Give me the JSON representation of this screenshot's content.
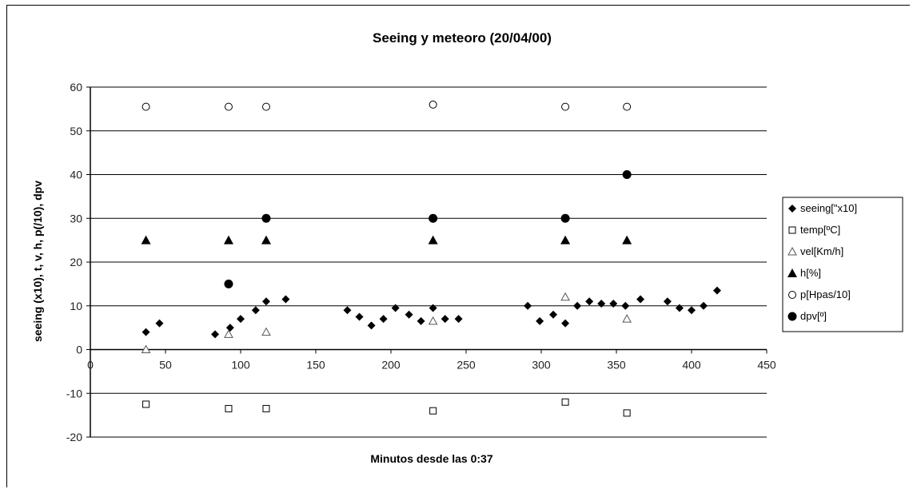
{
  "chart_data": {
    "type": "scatter",
    "title": "Seeing y meteoro (20/04/00)",
    "xlabel": "Minutos desde las 0:37",
    "ylabel": "seeing (x10), t, v, h, p(/10), dpv",
    "xlim": [
      0,
      450
    ],
    "ylim": [
      -20,
      60
    ],
    "x_ticks": [
      "0",
      "50",
      "100",
      "150",
      "200",
      "250",
      "300",
      "350",
      "400",
      "450"
    ],
    "y_ticks": [
      "60",
      "50",
      "40",
      "30",
      "20",
      "10",
      "0",
      "-10",
      "-20"
    ],
    "grid": "horizontal",
    "legend_position": "right",
    "series": [
      {
        "name": "seeing[\"x10]",
        "marker": "diamond",
        "color": "#000000",
        "x": [
          37,
          46,
          83,
          93,
          100,
          110,
          117,
          130,
          171,
          179,
          187,
          195,
          203,
          212,
          220,
          228,
          236,
          245,
          291,
          299,
          308,
          316,
          324,
          332,
          340,
          348,
          356,
          366,
          384,
          392,
          400,
          408,
          417
        ],
        "y": [
          4,
          6,
          3.5,
          5,
          7,
          9,
          11,
          11.5,
          9,
          7.5,
          5.5,
          7,
          9.5,
          8,
          6.5,
          9.5,
          7,
          7,
          10,
          6.5,
          8,
          6,
          10,
          11,
          10.5,
          10.5,
          10,
          11.5,
          11,
          9.5,
          9,
          10,
          13.5
        ]
      },
      {
        "name": "temp[ºC]",
        "marker": "square-open",
        "color": "#000000",
        "x": [
          37,
          92,
          117,
          228,
          316,
          357
        ],
        "y": [
          -12.5,
          -13.5,
          -13.5,
          -14,
          -12,
          -14.5
        ]
      },
      {
        "name": "vel[Km/h]",
        "marker": "triangle-open",
        "color": "#555555",
        "x": [
          37,
          92,
          117,
          228,
          316,
          357
        ],
        "y": [
          0,
          3.5,
          4,
          6.5,
          12,
          7
        ]
      },
      {
        "name": "h[%]",
        "marker": "triangle",
        "color": "#000000",
        "x": [
          37,
          92,
          117,
          228,
          316,
          357
        ],
        "y": [
          25,
          25,
          25,
          25,
          25,
          25
        ]
      },
      {
        "name": "p[Hpas/10]",
        "marker": "circle-open",
        "color": "#000000",
        "x": [
          37,
          92,
          117,
          228,
          316,
          357
        ],
        "y": [
          55.5,
          55.5,
          55.5,
          56,
          55.5,
          55.5
        ]
      },
      {
        "name": "dpv[º]",
        "marker": "circle",
        "color": "#000000",
        "x": [
          92,
          117,
          228,
          316,
          357
        ],
        "y": [
          15,
          30,
          30,
          30,
          40
        ]
      }
    ]
  }
}
